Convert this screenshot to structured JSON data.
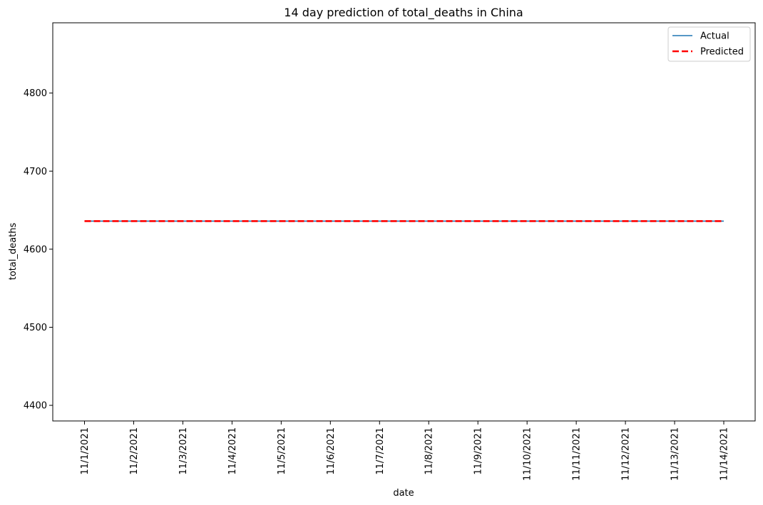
{
  "chart_data": {
    "type": "line",
    "title": "14 day prediction of total_deaths in China",
    "xlabel": "date",
    "ylabel": "total_deaths",
    "categories": [
      "11/1/2021",
      "11/2/2021",
      "11/3/2021",
      "11/4/2021",
      "11/5/2021",
      "11/6/2021",
      "11/7/2021",
      "11/8/2021",
      "11/9/2021",
      "11/10/2021",
      "11/11/2021",
      "11/12/2021",
      "11/13/2021",
      "11/14/2021"
    ],
    "ylim": [
      4380,
      4890
    ],
    "yticks": [
      4400,
      4500,
      4600,
      4700,
      4800
    ],
    "grid": false,
    "legend_position": "top-right",
    "series": [
      {
        "name": "Actual",
        "color": "#1f77b4",
        "style": "solid",
        "values": [
          4636,
          4636,
          4636,
          4636,
          4636,
          4636,
          4636,
          4636,
          4636,
          4636,
          4636,
          4636,
          4636,
          4636
        ]
      },
      {
        "name": "Predicted",
        "color": "#ff0000",
        "style": "dashed",
        "values": [
          4636,
          4636,
          4636,
          4636,
          4636,
          4636,
          4636,
          4636,
          4636,
          4636,
          4636,
          4636,
          4636,
          4636
        ]
      }
    ]
  }
}
